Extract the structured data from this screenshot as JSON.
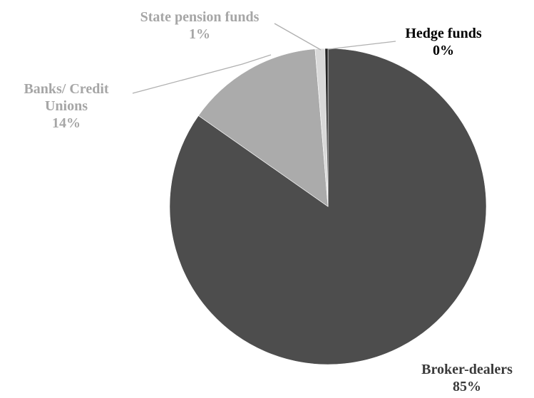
{
  "chart_data": {
    "type": "pie",
    "title": "",
    "slices": [
      {
        "name": "Broker-dealers",
        "label_lines": [
          "Broker-dealers"
        ],
        "value": 85,
        "pct_label": "85%",
        "color": "#4d4d4d",
        "label_color": "#3a3a3a"
      },
      {
        "name": "Banks/ Credit Unions",
        "label_lines": [
          "Banks/ Credit",
          "Unions"
        ],
        "value": 14,
        "pct_label": "14%",
        "color": "#ababab",
        "label_color": "#a6a6a6"
      },
      {
        "name": "State pension funds",
        "label_lines": [
          "State pension funds"
        ],
        "value": 1,
        "pct_label": "1%",
        "color": "#d9d9d9",
        "label_color": "#a6a6a6"
      },
      {
        "name": "Hedge funds",
        "label_lines": [
          "Hedge funds"
        ],
        "value": 0.3,
        "pct_label": "0%",
        "color": "#222222",
        "label_color": "#000000"
      }
    ],
    "legend": "none",
    "start_angle_deg": 0,
    "direction": "clockwise"
  }
}
